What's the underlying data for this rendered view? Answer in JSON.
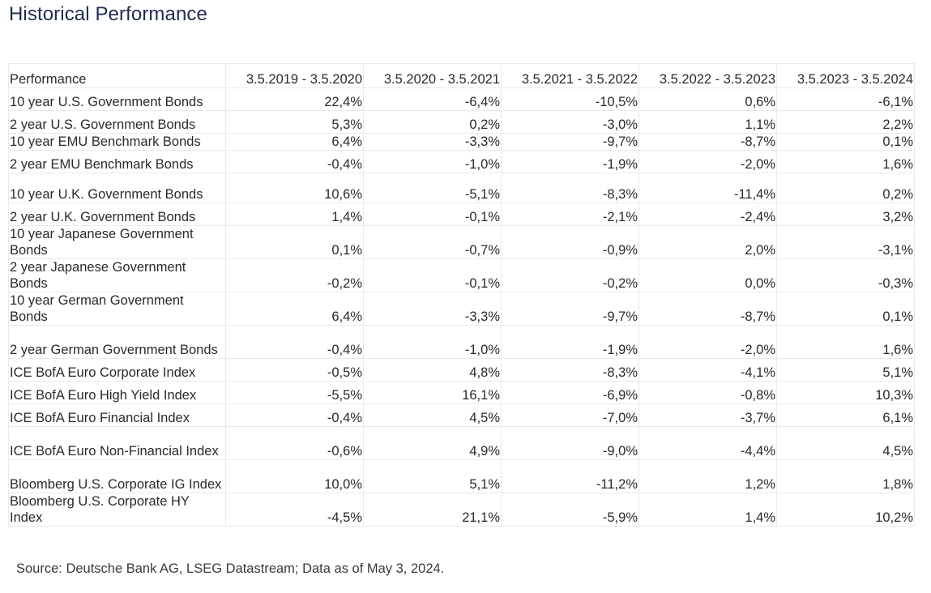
{
  "title": "Historical Performance",
  "table": {
    "headers": [
      "Performance",
      "3.5.2019 - 3.5.2020",
      "3.5.2020 - 3.5.2021",
      "3.5.2021 - 3.5.2022",
      "3.5.2022 - 3.5.2023",
      "3.5.2023 - 3.5.2024"
    ],
    "rows": [
      {
        "label": "10 year U.S. Government Bonds",
        "values": [
          "22,4%",
          "-6,4%",
          "-10,5%",
          "0,6%",
          "-6,1%"
        ]
      },
      {
        "label": "2 year U.S. Government Bonds",
        "values": [
          "5,3%",
          "0,2%",
          "-3,0%",
          "1,1%",
          "2,2%"
        ]
      },
      {
        "label": "10 year EMU Benchmark Bonds",
        "values": [
          "6,4%",
          "-3,3%",
          "-9,7%",
          "-8,7%",
          "0,1%"
        ]
      },
      {
        "label": "2 year EMU Benchmark Bonds",
        "values": [
          "-0,4%",
          "-1,0%",
          "-1,9%",
          "-2,0%",
          "1,6%"
        ]
      },
      {
        "label": "10 year U.K. Government Bonds",
        "values": [
          "10,6%",
          "-5,1%",
          "-8,3%",
          "-11,4%",
          "0,2%"
        ]
      },
      {
        "label": "2 year U.K. Government Bonds",
        "values": [
          "1,4%",
          "-0,1%",
          "-2,1%",
          "-2,4%",
          "3,2%"
        ]
      },
      {
        "label": "10 year Japanese Government Bonds",
        "values": [
          "0,1%",
          "-0,7%",
          "-0,9%",
          "2,0%",
          "-3,1%"
        ]
      },
      {
        "label": "2 year Japanese Government Bonds",
        "values": [
          "-0,2%",
          "-0,1%",
          "-0,2%",
          "0,0%",
          "-0,3%"
        ]
      },
      {
        "label": "10 year German Government Bonds",
        "values": [
          "6,4%",
          "-3,3%",
          "-9,7%",
          "-8,7%",
          "0,1%"
        ]
      },
      {
        "label": "2 year German Government Bonds",
        "values": [
          "-0,4%",
          "-1,0%",
          "-1,9%",
          "-2,0%",
          "1,6%"
        ]
      },
      {
        "label": "ICE BofA Euro Corporate Index",
        "values": [
          "-0,5%",
          "4,8%",
          "-8,3%",
          "-4,1%",
          "5,1%"
        ]
      },
      {
        "label": "ICE BofA Euro High Yield Index",
        "values": [
          "-5,5%",
          "16,1%",
          "-6,9%",
          "-0,8%",
          "10,3%"
        ]
      },
      {
        "label": "ICE BofA Euro Financial Index",
        "values": [
          "-0,4%",
          "4,5%",
          "-7,0%",
          "-3,7%",
          "6,1%"
        ]
      },
      {
        "label": "ICE BofA Euro Non-Financial Index",
        "values": [
          "-0,6%",
          "4,9%",
          "-9,0%",
          "-4,4%",
          "4,5%"
        ]
      },
      {
        "label": "Bloomberg U.S. Corporate IG Index",
        "values": [
          "10,0%",
          "5,1%",
          "-11,2%",
          "1,2%",
          "1,8%"
        ]
      },
      {
        "label": "Bloomberg U.S. Corporate HY Index",
        "values": [
          "-4,5%",
          "21,1%",
          "-5,9%",
          "1,4%",
          "10,2%"
        ]
      }
    ]
  },
  "source": "Source: Deutsche Bank AG, LSEG Datastream; Data as of May 3, 2024."
}
